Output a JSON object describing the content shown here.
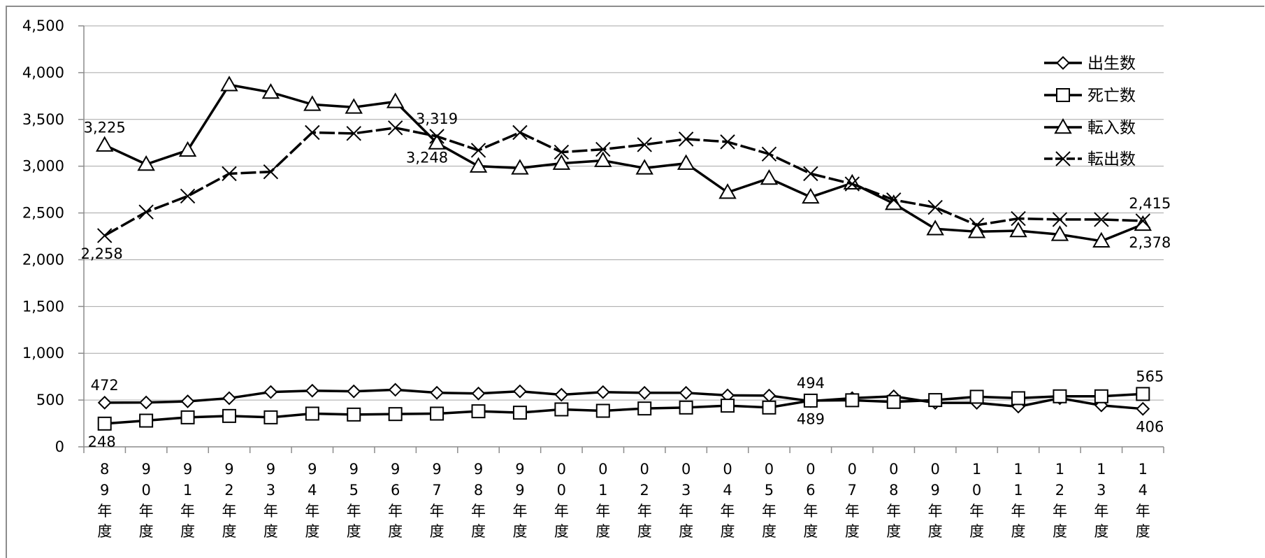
{
  "chart_data": {
    "type": "line",
    "title": "",
    "xlabel": "",
    "ylabel": "",
    "ylim": [
      0,
      4500
    ],
    "yticks": [
      0,
      500,
      1000,
      1500,
      2000,
      2500,
      3000,
      3500,
      4000,
      4500
    ],
    "ytick_labels": [
      "0",
      "500",
      "1,000",
      "1,500",
      "2,000",
      "2,500",
      "3,000",
      "3,500",
      "4,000",
      "4,500"
    ],
    "grid": "horizontal",
    "legend_position": "right",
    "categories": [
      "89年度",
      "90年度",
      "91年度",
      "92年度",
      "93年度",
      "94年度",
      "95年度",
      "96年度",
      "97年度",
      "98年度",
      "99年度",
      "00年度",
      "01年度",
      "02年度",
      "03年度",
      "04年度",
      "05年度",
      "06年度",
      "07年度",
      "08年度",
      "09年度",
      "10年度",
      "11年度",
      "12年度",
      "13年度",
      "14年度"
    ],
    "category_digits": [
      [
        "8",
        "9"
      ],
      [
        "9",
        "0"
      ],
      [
        "9",
        "1"
      ],
      [
        "9",
        "2"
      ],
      [
        "9",
        "3"
      ],
      [
        "9",
        "4"
      ],
      [
        "9",
        "5"
      ],
      [
        "9",
        "6"
      ],
      [
        "9",
        "7"
      ],
      [
        "9",
        "8"
      ],
      [
        "9",
        "9"
      ],
      [
        "0",
        "0"
      ],
      [
        "0",
        "1"
      ],
      [
        "0",
        "2"
      ],
      [
        "0",
        "3"
      ],
      [
        "0",
        "4"
      ],
      [
        "0",
        "5"
      ],
      [
        "0",
        "6"
      ],
      [
        "0",
        "7"
      ],
      [
        "0",
        "8"
      ],
      [
        "0",
        "9"
      ],
      [
        "1",
        "0"
      ],
      [
        "1",
        "1"
      ],
      [
        "1",
        "2"
      ],
      [
        "1",
        "3"
      ],
      [
        "1",
        "4"
      ]
    ],
    "category_suffix": [
      "年",
      "度"
    ],
    "series": [
      {
        "name": "出生数",
        "marker": "diamond",
        "dash": "solid",
        "values": [
          472,
          474,
          486,
          520,
          586,
          600,
          593,
          610,
          578,
          570,
          593,
          557,
          585,
          577,
          577,
          550,
          548,
          489,
          520,
          540,
          470,
          470,
          430,
          520,
          443,
          406
        ]
      },
      {
        "name": "死亡数",
        "marker": "square",
        "dash": "solid",
        "values": [
          248,
          280,
          315,
          330,
          315,
          355,
          345,
          350,
          355,
          380,
          365,
          400,
          385,
          410,
          420,
          440,
          420,
          494,
          498,
          480,
          500,
          535,
          520,
          540,
          540,
          565
        ]
      },
      {
        "name": "転入数",
        "marker": "triangle",
        "dash": "solid",
        "values": [
          3225,
          3020,
          3170,
          3870,
          3790,
          3660,
          3630,
          3690,
          3248,
          3000,
          2980,
          3030,
          3060,
          2980,
          3030,
          2720,
          2870,
          2670,
          2820,
          2600,
          2330,
          2300,
          2310,
          2270,
          2200,
          2378
        ]
      },
      {
        "name": "転出数",
        "marker": "x",
        "dash": "dashed",
        "values": [
          2258,
          2510,
          2680,
          2920,
          2940,
          3360,
          3350,
          3410,
          3319,
          3170,
          3360,
          3150,
          3180,
          3230,
          3290,
          3260,
          3130,
          2920,
          2810,
          2640,
          2560,
          2370,
          2440,
          2430,
          2430,
          2415
        ]
      }
    ],
    "data_labels": [
      {
        "series": 2,
        "index": 0,
        "text": "3,225",
        "pos": "above"
      },
      {
        "series": 3,
        "index": 8,
        "text": "3,319",
        "pos": "above"
      },
      {
        "series": 2,
        "index": 8,
        "text": "3,248",
        "pos": "below-left"
      },
      {
        "series": 3,
        "index": 0,
        "text": "2,258",
        "pos": "below"
      },
      {
        "series": 3,
        "index": 25,
        "text": "2,415",
        "pos": "above"
      },
      {
        "series": 2,
        "index": 25,
        "text": "2,378",
        "pos": "below"
      },
      {
        "series": 0,
        "index": 0,
        "text": "472",
        "pos": "above"
      },
      {
        "series": 1,
        "index": 0,
        "text": "248",
        "pos": "below"
      },
      {
        "series": 1,
        "index": 17,
        "text": "494",
        "pos": "above"
      },
      {
        "series": 0,
        "index": 17,
        "text": "489",
        "pos": "below"
      },
      {
        "series": 1,
        "index": 25,
        "text": "565",
        "pos": "above"
      },
      {
        "series": 0,
        "index": 25,
        "text": "406",
        "pos": "below"
      }
    ],
    "colors": {
      "line": "#000000",
      "grid": "#a6a6a6",
      "axis": "#8c8c8c",
      "marker_fill": "#ffffff"
    }
  }
}
